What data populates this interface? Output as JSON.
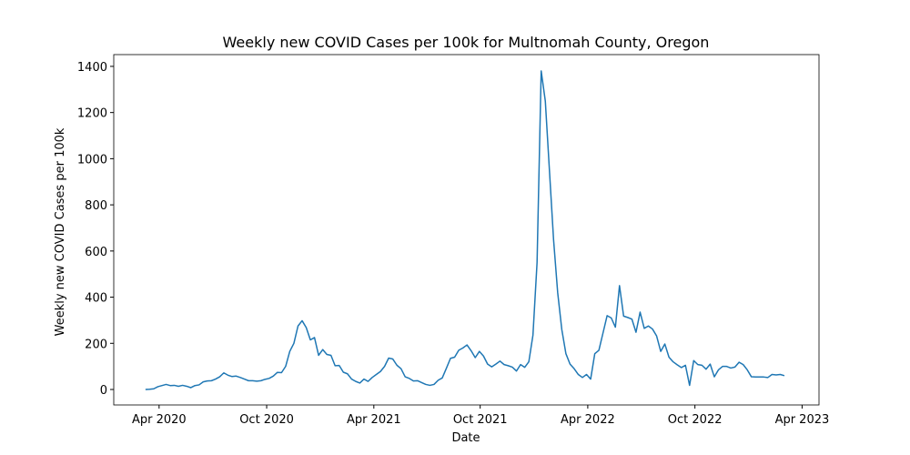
{
  "chart_data": {
    "type": "line",
    "title": "Weekly new COVID Cases per 100k for Multnomah County, Oregon",
    "xlabel": "Date",
    "ylabel": "Weekly new COVID Cases per 100k",
    "xlim": [
      -7.7,
      163.4
    ],
    "xticks": [
      {
        "value": 3.3,
        "label": "Apr 2020"
      },
      {
        "value": 29.4,
        "label": "Oct 2020"
      },
      {
        "value": 55.4,
        "label": "Apr 2021"
      },
      {
        "value": 81.2,
        "label": "Oct 2021"
      },
      {
        "value": 107.3,
        "label": "Apr 2022"
      },
      {
        "value": 133.3,
        "label": "Oct 2022"
      },
      {
        "value": 159.3,
        "label": "Apr 2023"
      }
    ],
    "ylim": [
      -67,
      1451
    ],
    "yticks": [
      0,
      200,
      400,
      600,
      800,
      1000,
      1200,
      1400
    ],
    "grid": false,
    "color": "#1f77b4",
    "values": [
      0,
      1,
      3,
      12,
      17,
      22,
      17,
      18,
      14,
      18,
      14,
      8,
      17,
      20,
      33,
      37,
      38,
      45,
      55,
      72,
      62,
      56,
      58,
      52,
      45,
      38,
      38,
      36,
      38,
      44,
      48,
      58,
      74,
      73,
      100,
      165,
      200,
      275,
      298,
      268,
      215,
      225,
      148,
      173,
      152,
      148,
      103,
      104,
      75,
      68,
      45,
      35,
      28,
      45,
      35,
      52,
      65,
      78,
      100,
      136,
      132,
      105,
      90,
      55,
      48,
      37,
      38,
      30,
      22,
      18,
      22,
      40,
      50,
      92,
      135,
      140,
      170,
      180,
      193,
      168,
      138,
      165,
      145,
      110,
      98,
      110,
      123,
      108,
      103,
      97,
      80,
      108,
      96,
      120,
      235,
      550,
      1380,
      1250,
      950,
      650,
      420,
      260,
      155,
      110,
      90,
      65,
      52,
      65,
      45,
      155,
      170,
      245,
      320,
      310,
      270,
      450,
      318,
      312,
      305,
      248,
      335,
      265,
      275,
      262,
      232,
      165,
      197,
      140,
      120,
      107,
      95,
      105,
      18,
      125,
      108,
      105,
      88,
      110,
      55,
      85,
      100,
      100,
      93,
      97,
      118,
      108,
      85,
      55,
      54,
      54,
      54,
      52,
      65,
      63,
      65,
      60
    ]
  }
}
